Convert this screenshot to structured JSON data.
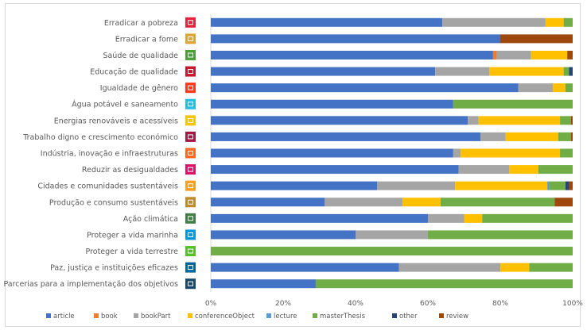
{
  "chart_data": {
    "type": "bar",
    "orientation": "horizontal",
    "stacked": "percent",
    "categories": [
      "Erradicar a pobreza",
      "Erradicar a fome",
      "Saúde de qualidade",
      "Educação de qualidade",
      "Igualdade de gênero",
      "Água potável e saneamento",
      "Energias renováveis e acessíveis",
      "Trabalho digno e crescimento económico",
      "Indústria, inovação e infraestruturas",
      "Reduzir as desigualdades",
      "Cidades e comunidades sustentáveis",
      "Produção e consumo sustentáveis",
      "Ação climática",
      "Proteger a vida marinha",
      "Proteger a vida terrestre",
      "Paz, justiça e instituições eficazes",
      "Parcerias para a implementação dos objetivos"
    ],
    "series": [
      {
        "name": "article",
        "color": "#4472c4",
        "values": [
          64,
          80,
          78,
          62,
          85,
          67,
          71,
          74.5,
          67,
          68.5,
          46,
          31.5,
          60,
          40,
          0,
          52,
          29
        ]
      },
      {
        "name": "book",
        "color": "#ed7d31",
        "values": [
          0,
          0,
          1,
          0,
          0,
          0,
          0,
          0,
          0,
          0,
          0,
          0,
          0,
          0,
          0,
          0,
          0
        ]
      },
      {
        "name": "bookPart",
        "color": "#a5a5a5",
        "values": [
          28.5,
          0,
          9.5,
          15,
          9.5,
          0,
          3,
          7,
          2,
          14,
          21.5,
          21.5,
          10,
          20,
          0,
          28,
          0
        ]
      },
      {
        "name": "conferenceObject",
        "color": "#ffc000",
        "values": [
          5,
          0,
          10,
          20.5,
          3.5,
          0,
          22.5,
          14.5,
          27.5,
          8,
          25.5,
          10.5,
          5,
          0,
          0,
          8,
          0
        ]
      },
      {
        "name": "lecture",
        "color": "#5b9bd5",
        "values": [
          0,
          0,
          0,
          0,
          0,
          0,
          0,
          0,
          0,
          0,
          0.5,
          0,
          0,
          0,
          0,
          0,
          0
        ]
      },
      {
        "name": "masterThesis",
        "color": "#70ad47",
        "values": [
          2.5,
          0,
          0,
          1.5,
          2,
          33,
          3,
          3.5,
          3.5,
          9.5,
          4.5,
          31.5,
          25,
          40,
          100,
          12,
          71
        ]
      },
      {
        "name": "other",
        "color": "#264478",
        "values": [
          0,
          0,
          0,
          1,
          0,
          0,
          0,
          0,
          0,
          0,
          1,
          0,
          0,
          0,
          0,
          0,
          0
        ]
      },
      {
        "name": "review",
        "color": "#9e480e",
        "values": [
          0,
          20,
          1.5,
          0,
          0,
          0,
          0.5,
          0.5,
          0,
          0,
          1,
          5,
          0,
          0,
          0,
          0,
          0
        ]
      }
    ],
    "xlim": [
      0,
      100
    ],
    "xticks": [
      "0%",
      "20%",
      "40%",
      "60%",
      "80%",
      "100%"
    ],
    "grid": false,
    "legend": "bottom",
    "sdg_icon_colors": [
      "#e5243b",
      "#dda63a",
      "#4c9f38",
      "#c5192d",
      "#ff3a21",
      "#26bde2",
      "#fcc30b",
      "#a21942",
      "#fd6925",
      "#dd1367",
      "#fd9d24",
      "#bf8b2e",
      "#3f7e44",
      "#0a97d9",
      "#56c02b",
      "#00689d",
      "#19486a"
    ]
  }
}
